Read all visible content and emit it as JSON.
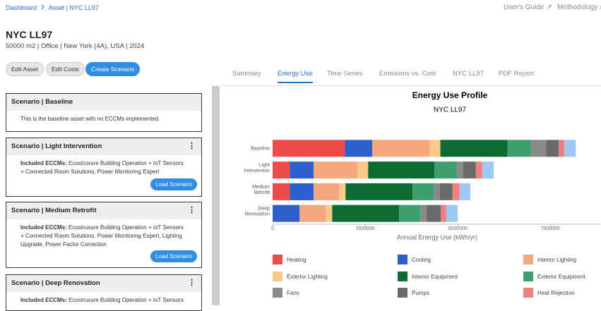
{
  "header": {
    "breadcrumb": [
      "Dashboard",
      "Asset | NYC LL97"
    ],
    "links": [
      "User's Guide ↗",
      "Methodology ›"
    ],
    "title": "NYC LL97",
    "subtitle": "50000 m2 | Office | New York (4A), USA | 2024"
  },
  "buttons": [
    "Edit Asset",
    "Edit Costs",
    "Create Scenario"
  ],
  "tabs": [
    "Summary",
    "Energy Use",
    "Time Series",
    "Emissions vs. Cost",
    "NYC LL97",
    "PDF Report"
  ],
  "scenarios": [
    {
      "title": "Scenario | Baseline",
      "text": "This is the baseline asset with no ECCMs implemented."
    },
    {
      "title": "Scenario | Light Intervention",
      "label": "Included ECCMs:",
      "text": "Ecostruxure Building Operation + IoT Sensors + Connected Room Solutions, Power Monitoring Expert",
      "button": "Load Scenario"
    },
    {
      "title": "Scenario | Medium Retrofit",
      "label": "Included ECCMs:",
      "text": "Ecostruxure Building Operation + IoT Sensors + Connected Room Solutions, Power Monitoring Expert, Lighting Upgrade, Power Factor Correction",
      "button": "Load Scenario"
    },
    {
      "title": "Scenario | Deep Renovation",
      "label": "Included ECCMs:",
      "text": "Ecostruxure Building Operation + IoT Sensors"
    }
  ],
  "chart_data": {
    "type": "stacked-bar-horizontal",
    "title": "Energy Use Profile",
    "subtitle": "NYC LL97",
    "x_label": "Annual Energy Use (kWh/yr)",
    "categories": [
      "Baseline",
      "Light Intervention",
      "Medium Retrofit",
      "Deep Renovation"
    ],
    "xlim": [
      0,
      8850000
    ],
    "xticks": [
      0,
      2500000,
      5000000,
      7500000
    ],
    "grid": false,
    "series": [
      {
        "name": "Heating",
        "color": "#f04b4b",
        "values": [
          1950000,
          460000,
          460000,
          0
        ]
      },
      {
        "name": "Cooling",
        "color": "#2f5fcf",
        "values": [
          740000,
          650000,
          650000,
          730000
        ]
      },
      {
        "name": "Interior Lighting",
        "color": "#f7a77e",
        "values": [
          1550000,
          1180000,
          690000,
          710000
        ]
      },
      {
        "name": "Exterior Lighting",
        "color": "#f9c98a",
        "values": [
          290000,
          290000,
          170000,
          170000
        ]
      },
      {
        "name": "Interior Equipment",
        "color": "#0b6b33",
        "values": [
          1810000,
          1790000,
          1810000,
          1810000
        ]
      },
      {
        "name": "Exterior Equipment",
        "color": "#3d9e6e",
        "values": [
          630000,
          610000,
          570000,
          570000
        ]
      },
      {
        "name": "Fans",
        "color": "#8a8a8a",
        "values": [
          420000,
          170000,
          170000,
          170000
        ]
      },
      {
        "name": "Pumps",
        "color": "#6a6a6a",
        "values": [
          340000,
          340000,
          340000,
          380000
        ]
      },
      {
        "name": "Heat Rejection",
        "color": "#f08080",
        "values": [
          150000,
          170000,
          190000,
          150000
        ]
      },
      {
        "color": "#9ec8f5",
        "values": [
          310000,
          310000,
          290000,
          310000
        ]
      }
    ]
  }
}
